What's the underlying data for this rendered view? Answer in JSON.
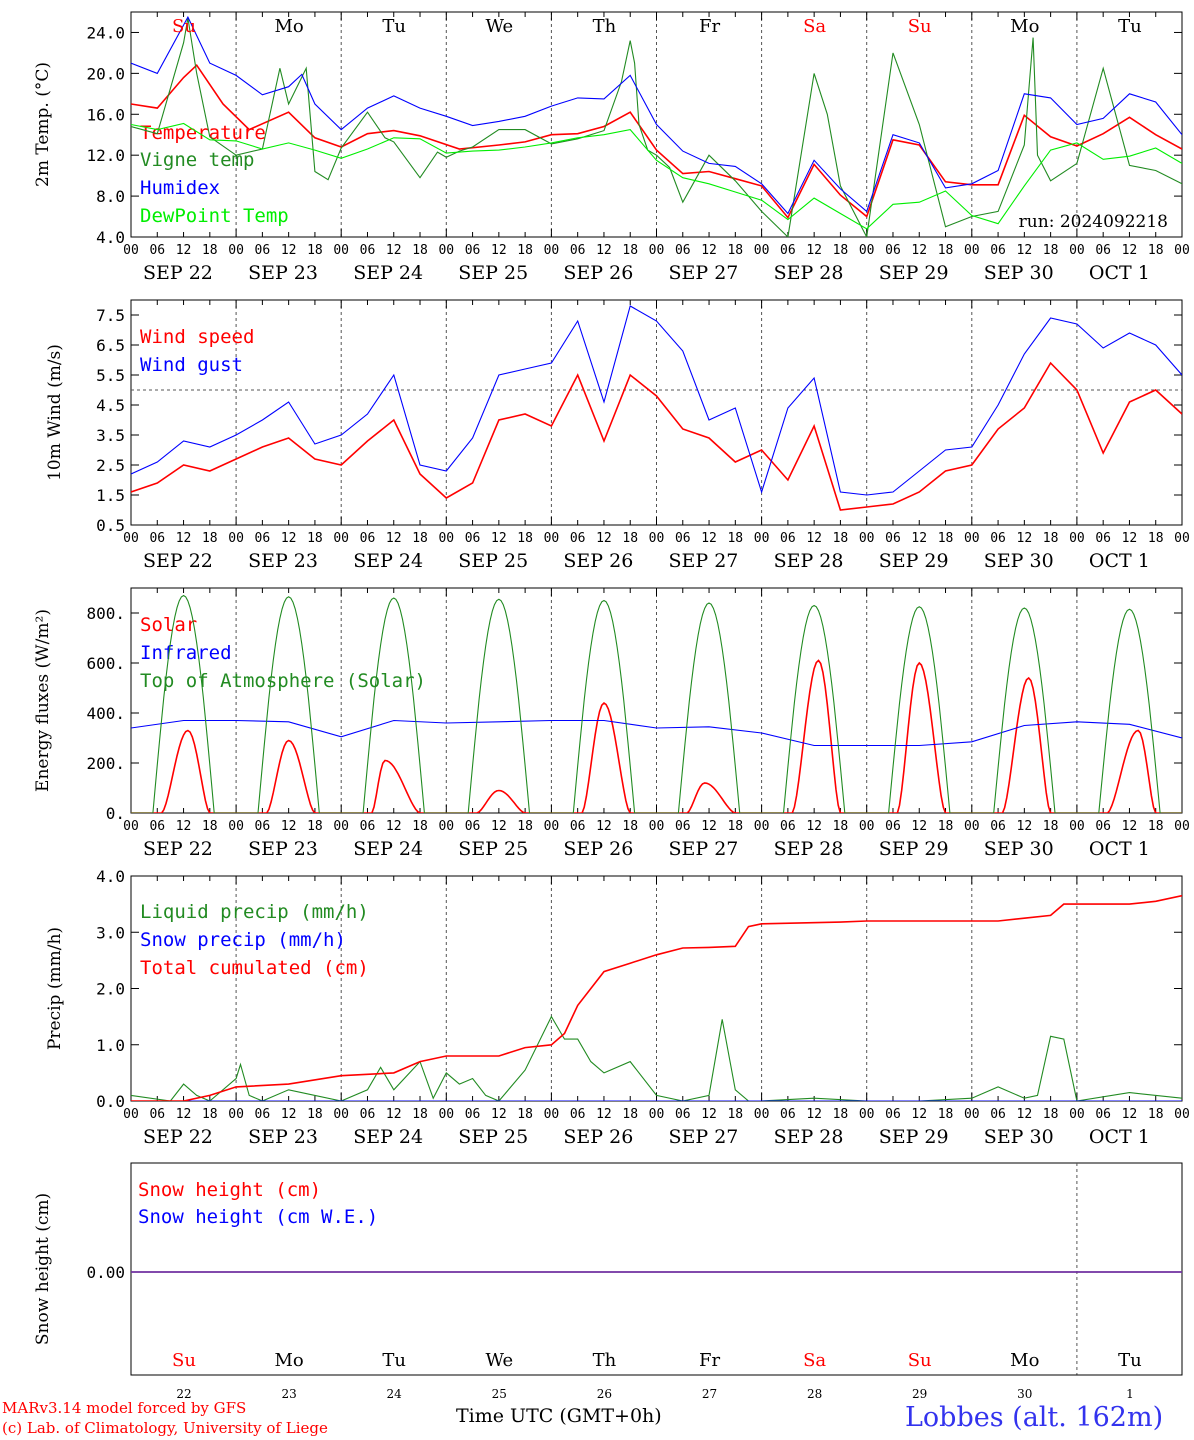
{
  "run_label": "run: 2024092218",
  "day_names": [
    "Su",
    "Mo",
    "Tu",
    "We",
    "Th",
    "Fr",
    "Sa",
    "Su",
    "Mo",
    "Tu"
  ],
  "day_name_colors": [
    "#ff0000",
    "#000000",
    "#000000",
    "#000000",
    "#000000",
    "#000000",
    "#ff0000",
    "#ff0000",
    "#000000",
    "#000000"
  ],
  "date_labels": [
    "SEP 22",
    "SEP 23",
    "SEP 24",
    "SEP 25",
    "SEP 26",
    "SEP 27",
    "SEP 28",
    "SEP 29",
    "SEP 30",
    "OCT  1"
  ],
  "hour_ticks": [
    "00",
    "06",
    "12",
    "18"
  ],
  "bottom_day_numbers": [
    "22",
    "23",
    "24",
    "25",
    "26",
    "27",
    "28",
    "29",
    "30",
    "1"
  ],
  "footer": {
    "credit_line1": "MARv3.14 model forced by GFS",
    "credit_line2": "(c) Lab. of Climatology, University of Liege",
    "xlabel": "Time UTC (GMT+0h)",
    "location": "Lobbes (alt. 162m)"
  },
  "chart_data": [
    {
      "type": "line",
      "ylabel": "2m Temp. (°C)",
      "ylim": [
        4,
        26
      ],
      "yticks": [
        "4.0",
        "8.0",
        "12.0",
        "16.0",
        "20.0",
        "24.0"
      ],
      "x_unit": "hours since SEP 22 00 UTC",
      "series": [
        {
          "name": "Temperature",
          "color": "#ff0000",
          "x": [
            0,
            6,
            12,
            15,
            21,
            27,
            36,
            42,
            48,
            54,
            60,
            66,
            75,
            84,
            90,
            96,
            102,
            108,
            114,
            120,
            126,
            132,
            138,
            144,
            150,
            156,
            162,
            168,
            174,
            180,
            186,
            192,
            198,
            204,
            210,
            216,
            222,
            228,
            234,
            240
          ],
          "values": [
            17,
            16.6,
            19.6,
            20.8,
            17,
            14.5,
            16.2,
            13.7,
            12.8,
            14.1,
            14.4,
            13.9,
            12.6,
            13,
            13.3,
            14,
            14.1,
            14.8,
            16.2,
            12.5,
            10.2,
            10.4,
            9.7,
            9,
            5.9,
            11.1,
            8.1,
            6,
            13.5,
            13,
            9.4,
            9.1,
            9.1,
            15.9,
            13.8,
            12.9,
            14.1,
            15.7,
            14,
            12.6
          ]
        },
        {
          "name": "Vigne temp",
          "color": "#228b22",
          "x": [
            0,
            6,
            12,
            13,
            15,
            18,
            24,
            30,
            34,
            36,
            40,
            42,
            45,
            48,
            54,
            58,
            60,
            66,
            70,
            72,
            75,
            78,
            84,
            90,
            96,
            102,
            108,
            112,
            114,
            115,
            116,
            118,
            120,
            123,
            126,
            132,
            138,
            144,
            150,
            156,
            159,
            162,
            168,
            174,
            180,
            186,
            192,
            198,
            204,
            206,
            207,
            210,
            216,
            222,
            228,
            234,
            240
          ],
          "values": [
            14.8,
            14.1,
            23,
            25.4,
            20,
            13.8,
            12,
            12.6,
            20.5,
            17,
            20.5,
            10.4,
            9.6,
            12.7,
            16.2,
            13.7,
            13.3,
            9.8,
            12.3,
            11.8,
            12.4,
            12.8,
            14.5,
            14.5,
            13.1,
            13.6,
            14.4,
            19.2,
            23.2,
            21,
            15,
            12.5,
            12,
            10.8,
            7.4,
            12,
            9.5,
            6.5,
            4,
            20,
            16,
            9,
            4,
            22,
            15,
            5,
            6,
            6.5,
            13,
            23.5,
            12,
            9.5,
            11.2,
            20.5,
            11,
            10.5,
            9.2
          ]
        },
        {
          "name": "Humidex",
          "color": "#0000ff",
          "x": [
            0,
            6,
            13,
            18,
            24,
            30,
            36,
            39,
            42,
            48,
            54,
            60,
            66,
            72,
            78,
            84,
            90,
            96,
            102,
            108,
            114,
            120,
            126,
            132,
            138,
            144,
            150,
            156,
            162,
            168,
            174,
            180,
            186,
            192,
            198,
            204,
            210,
            216,
            222,
            228,
            234,
            240
          ],
          "values": [
            21,
            20,
            25.5,
            21,
            19.8,
            17.9,
            18.7,
            19.9,
            17,
            14.5,
            16.6,
            17.8,
            16.6,
            15.8,
            14.9,
            15.3,
            15.8,
            16.8,
            17.6,
            17.5,
            19.8,
            15,
            12.4,
            11.2,
            10.9,
            9.2,
            6.3,
            11.5,
            8.7,
            6.5,
            14,
            13.2,
            8.8,
            9.2,
            10.5,
            18,
            17.6,
            15,
            15.6,
            18,
            17.2,
            14
          ]
        },
        {
          "name": "DewPoint Temp",
          "color": "#00ee00",
          "x": [
            0,
            6,
            12,
            18,
            24,
            30,
            36,
            42,
            48,
            54,
            60,
            66,
            72,
            78,
            84,
            90,
            96,
            102,
            108,
            114,
            120,
            126,
            132,
            138,
            144,
            150,
            156,
            162,
            168,
            174,
            180,
            186,
            192,
            198,
            204,
            210,
            216,
            222,
            228,
            234,
            240
          ],
          "values": [
            15,
            14.5,
            15.1,
            13.5,
            13.4,
            12.6,
            13.2,
            12.5,
            11.7,
            12.6,
            13.7,
            13.6,
            12.2,
            12.4,
            12.5,
            12.8,
            13.2,
            13.7,
            14,
            14.5,
            11.5,
            9.8,
            9.2,
            8.4,
            7.6,
            5.7,
            7.8,
            6.3,
            4.8,
            7.2,
            7.4,
            8.5,
            6.1,
            5.3,
            9,
            12.5,
            13.2,
            11.6,
            11.9,
            12.7,
            11.2
          ]
        }
      ]
    },
    {
      "type": "line",
      "ylabel": "10m Wind (m/s)",
      "ylim": [
        0.5,
        8
      ],
      "yticks": [
        "0.5",
        "1.5",
        "2.5",
        "3.5",
        "4.5",
        "5.5",
        "6.5",
        "7.5"
      ],
      "reference_line": 5.0,
      "series": [
        {
          "name": "Wind speed",
          "color": "#ff0000",
          "x": [
            0,
            6,
            12,
            18,
            24,
            30,
            36,
            42,
            48,
            54,
            60,
            66,
            72,
            78,
            84,
            90,
            96,
            102,
            108,
            114,
            120,
            126,
            132,
            138,
            144,
            150,
            156,
            162,
            168,
            174,
            180,
            186,
            192,
            198,
            204,
            210,
            216,
            222,
            228,
            234,
            240
          ],
          "values": [
            1.6,
            1.9,
            2.5,
            2.3,
            2.7,
            3.1,
            3.4,
            2.7,
            2.5,
            3.3,
            4,
            2.2,
            1.4,
            1.9,
            4,
            4.2,
            3.8,
            5.5,
            3.3,
            5.5,
            4.8,
            3.7,
            3.4,
            2.6,
            3,
            2,
            3.8,
            1,
            1.1,
            1.2,
            1.6,
            2.3,
            2.5,
            3.7,
            4.4,
            5.9,
            5,
            2.9,
            4.6,
            5,
            4.2
          ]
        },
        {
          "name": "Wind gust",
          "color": "#0000ff",
          "x": [
            0,
            6,
            12,
            18,
            24,
            30,
            36,
            42,
            48,
            54,
            60,
            66,
            72,
            78,
            84,
            90,
            96,
            102,
            108,
            114,
            120,
            126,
            132,
            138,
            144,
            150,
            156,
            162,
            168,
            174,
            180,
            186,
            192,
            198,
            204,
            210,
            216,
            222,
            228,
            234,
            240
          ],
          "values": [
            2.2,
            2.6,
            3.3,
            3.1,
            3.5,
            4,
            4.6,
            3.2,
            3.5,
            4.2,
            5.5,
            2.5,
            2.3,
            3.4,
            5.5,
            5.7,
            5.9,
            7.3,
            4.6,
            7.8,
            7.3,
            6.3,
            4,
            4.4,
            1.6,
            4.4,
            5.4,
            1.6,
            1.5,
            1.6,
            2.3,
            3,
            3.1,
            4.5,
            6.2,
            7.4,
            7.2,
            6.4,
            6.9,
            6.5,
            5.5
          ]
        }
      ]
    },
    {
      "type": "line",
      "ylabel": "Energy fluxes (W/m²)",
      "ylim": [
        0,
        900
      ],
      "yticks": [
        "0.",
        "200.",
        "400.",
        "600.",
        "800."
      ],
      "series": [
        {
          "name": "Solar",
          "color": "#ff0000",
          "peaks": [
            330,
            290,
            210,
            90,
            440,
            120,
            610,
            600,
            540,
            330
          ],
          "peak_hours": [
            13,
            12,
            10,
            12,
            12,
            11,
            13,
            12,
            13,
            14
          ]
        },
        {
          "name": "Infrared",
          "color": "#0000ff",
          "x": [
            0,
            12,
            24,
            36,
            48,
            60,
            72,
            84,
            96,
            108,
            120,
            132,
            144,
            156,
            168,
            180,
            192,
            204,
            216,
            228,
            240
          ],
          "values": [
            340,
            370,
            370,
            365,
            305,
            370,
            360,
            365,
            370,
            370,
            340,
            345,
            320,
            270,
            270,
            270,
            285,
            350,
            365,
            355,
            300
          ]
        },
        {
          "name": "Top of Atmosphere (Solar)",
          "color": "#228b22",
          "peaks": [
            870,
            865,
            860,
            855,
            850,
            840,
            830,
            825,
            820,
            815
          ],
          "peak_hours": [
            12,
            12,
            12,
            12,
            12,
            12,
            12,
            12,
            12,
            12
          ]
        }
      ]
    },
    {
      "type": "line",
      "ylabel": "Precip (mm/h)",
      "ylim": [
        0,
        4
      ],
      "yticks": [
        "0.0",
        "1.0",
        "2.0",
        "3.0",
        "4.0"
      ],
      "series": [
        {
          "name": "Liquid precip (mm/h)",
          "color": "#228b22",
          "x": [
            0,
            9,
            12,
            15,
            18,
            24,
            25,
            27,
            30,
            36,
            42,
            48,
            54,
            57,
            60,
            66,
            69,
            72,
            75,
            78,
            81,
            84,
            90,
            96,
            99,
            102,
            105,
            108,
            114,
            120,
            126,
            132,
            135,
            138,
            141,
            144,
            156,
            168,
            180,
            192,
            198,
            204,
            207,
            210,
            213,
            216,
            228,
            240
          ],
          "values": [
            0.1,
            0,
            0.3,
            0.1,
            0,
            0.4,
            0.65,
            0.1,
            0,
            0.2,
            0.1,
            0,
            0.2,
            0.6,
            0.2,
            0.7,
            0.05,
            0.5,
            0.3,
            0.4,
            0.1,
            0,
            0.55,
            1.5,
            1.1,
            1.1,
            0.7,
            0.5,
            0.7,
            0.1,
            0,
            0.1,
            1.45,
            0.2,
            0,
            0,
            0.05,
            0,
            0,
            0.05,
            0.25,
            0.05,
            0.1,
            1.15,
            1.1,
            0,
            0.15,
            0.05
          ]
        },
        {
          "name": "Snow precip (mm/h)",
          "color": "#0000ff",
          "x": [
            0,
            240
          ],
          "values": [
            0,
            0
          ]
        },
        {
          "name": "Total cumulated (cm)",
          "color": "#ff0000",
          "x": [
            0,
            12,
            18,
            24,
            36,
            48,
            60,
            66,
            72,
            84,
            90,
            96,
            99,
            102,
            108,
            114,
            120,
            126,
            132,
            138,
            141,
            144,
            162,
            168,
            174,
            180,
            186,
            192,
            198,
            204,
            210,
            213,
            216,
            228,
            234,
            240
          ],
          "values": [
            0,
            0,
            0.1,
            0.25,
            0.3,
            0.45,
            0.5,
            0.7,
            0.8,
            0.8,
            0.95,
            1.0,
            1.2,
            1.7,
            2.3,
            2.45,
            2.6,
            2.72,
            2.73,
            2.75,
            3.1,
            3.15,
            3.18,
            3.2,
            3.2,
            3.2,
            3.2,
            3.2,
            3.2,
            3.25,
            3.3,
            3.5,
            3.5,
            3.5,
            3.55,
            3.65
          ]
        }
      ]
    },
    {
      "type": "line",
      "ylabel": "Snow height (cm)",
      "yticks": [
        "0.00"
      ],
      "series": [
        {
          "name": "Snow height (cm)",
          "color": "#ff0000",
          "x": [
            0,
            240
          ],
          "values": [
            0,
            0
          ]
        },
        {
          "name": "Snow height (cm W.E.)",
          "color": "#0000ff",
          "x": [
            0,
            240
          ],
          "values": [
            0,
            0
          ]
        }
      ]
    }
  ]
}
